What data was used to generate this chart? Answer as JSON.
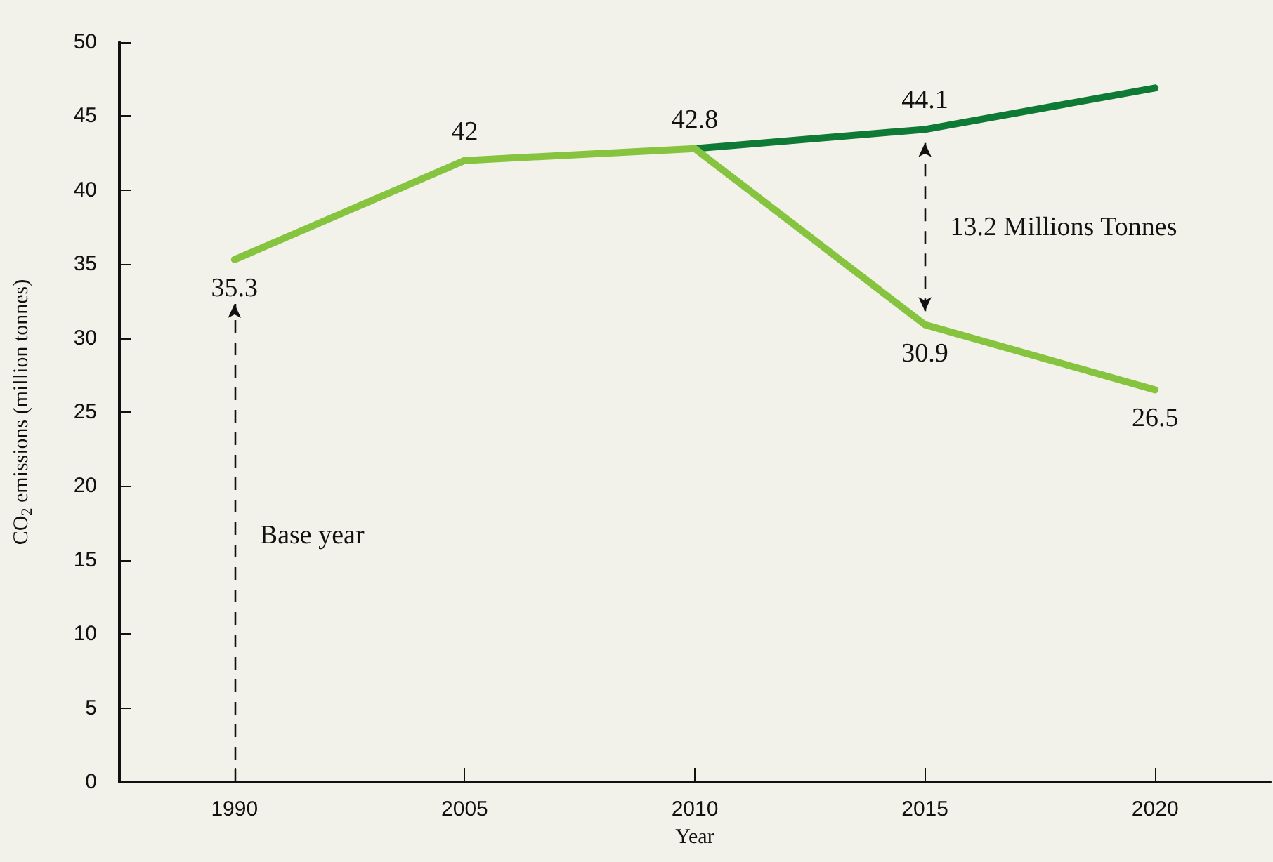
{
  "chart_data": {
    "type": "line",
    "xlabel": "Year",
    "ylabel": "CO$_{2}$ emissions (million tonnes)",
    "categories": [
      "1990",
      "2005",
      "2010",
      "2015",
      "2020"
    ],
    "series": [
      {
        "color": "#0e7a35",
        "values": [
          null,
          null,
          42.8,
          44.1,
          46.9
        ],
        "value_labels": [
          null,
          null,
          null,
          "44.1",
          null
        ]
      },
      {
        "color": "#86c440",
        "values": [
          35.3,
          42,
          42.8,
          30.9,
          26.5
        ],
        "value_labels": [
          "35.3",
          "42",
          "42.8",
          "30.9",
          "26.5"
        ]
      }
    ],
    "ylim": [
      0,
      50
    ],
    "yticks": [
      0,
      5,
      10,
      15,
      20,
      25,
      30,
      35,
      40,
      45,
      50
    ],
    "grid": false,
    "marker": "none",
    "line_style": "solid",
    "annotations": [
      "Base year",
      "13.2 Millions Tonnes"
    ]
  }
}
